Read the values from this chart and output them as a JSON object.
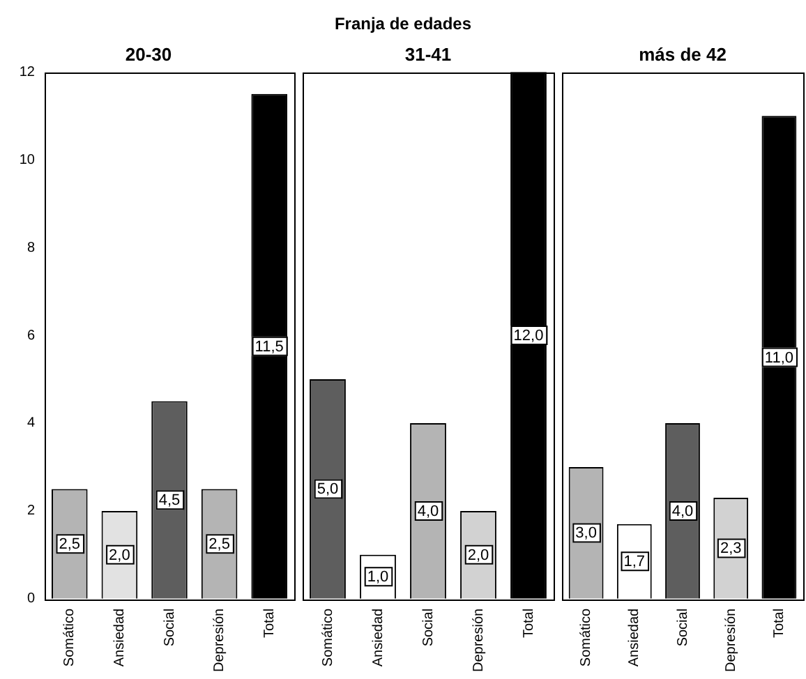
{
  "chart_data": [
    {
      "type": "bar",
      "title": "20-30",
      "annotations": [
        "Franja de edades"
      ],
      "categories": [
        "Somático",
        "Ansiedad",
        "Social",
        "Depresión",
        "Total"
      ],
      "values": [
        2.5,
        2.0,
        4.5,
        2.5,
        11.5
      ],
      "colors": [
        "#b4b4b4",
        "#e2e2e2",
        "#5e5e5e",
        "#b4b4b4",
        "#000000"
      ],
      "value_labels": [
        "2,5",
        "2,0",
        "4,5",
        "2,5",
        "11,5"
      ],
      "ylim": [
        0,
        12
      ],
      "yticks": [
        0,
        2,
        4,
        6,
        8,
        10,
        12
      ],
      "grid": false
    },
    {
      "type": "bar",
      "title": "31-41",
      "categories": [
        "Somático",
        "Ansiedad",
        "Social",
        "Depresión",
        "Total"
      ],
      "values": [
        5.0,
        1.0,
        4.0,
        2.0,
        12.0
      ],
      "colors": [
        "#5e5e5e",
        "#ffffff",
        "#b4b4b4",
        "#d2d2d2",
        "#000000"
      ],
      "value_labels": [
        "5,0",
        "1,0",
        "4,0",
        "2,0",
        "12,0"
      ],
      "ylim": [
        0,
        12
      ],
      "yticks": [
        0,
        2,
        4,
        6,
        8,
        10,
        12
      ],
      "grid": false,
      "tick_labels": "x"
    },
    {
      "type": "bar",
      "title": "más de 42",
      "categories": [
        "Somático",
        "Ansiedad",
        "Social",
        "Depresión",
        "Total"
      ],
      "values": [
        3.0,
        1.7,
        4.0,
        2.3,
        11.0
      ],
      "colors": [
        "#b4b4b4",
        "#ffffff",
        "#5e5e5e",
        "#d2d2d2",
        "#000000"
      ],
      "value_labels": [
        "3,0",
        "1,7",
        "4,0",
        "2,3",
        "11,0"
      ],
      "ylim": [
        0,
        12
      ],
      "yticks": [
        0,
        2,
        4,
        6,
        8,
        10,
        12
      ],
      "grid": false,
      "tick_labels": "x"
    }
  ]
}
